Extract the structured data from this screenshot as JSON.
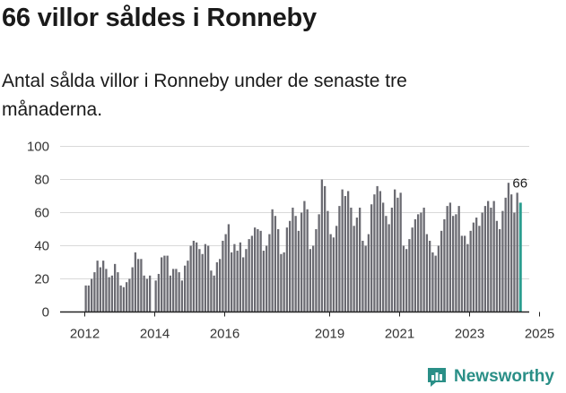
{
  "header": {
    "title": "66 villor såldes i Ronneby",
    "subtitle": "Antal sålda villor i Ronneby under de senaste tre månaderna."
  },
  "brand": {
    "name": "Newsworthy",
    "color": "#2a8f87",
    "icon": "newsworthy-logo-icon"
  },
  "colors": {
    "bar": "#6b6b72",
    "highlight": "#2a9d8f",
    "grid": "#d9d9d9",
    "axis": "#222222"
  },
  "chart_data": {
    "type": "bar",
    "title": "66 villor såldes i Ronneby",
    "ylim": [
      0,
      100
    ],
    "yticks": [
      "0",
      "20",
      "40",
      "60",
      "80",
      "100"
    ],
    "xticks": [
      "2012",
      "2014",
      "2016",
      "2019",
      "2021",
      "2023",
      "2025"
    ],
    "xtick_positions": [
      2012,
      2014,
      2016,
      2019,
      2021,
      2023,
      2025
    ],
    "grid": true,
    "start_year": 2012,
    "start_month": 1,
    "values": [
      16,
      16,
      20,
      24,
      31,
      27,
      31,
      26,
      21,
      22,
      29,
      24,
      16,
      15,
      18,
      20,
      27,
      36,
      32,
      32,
      22,
      20,
      22,
      null,
      19,
      23,
      33,
      34,
      34,
      22,
      26,
      26,
      24,
      19,
      28,
      31,
      40,
      43,
      42,
      38,
      35,
      41,
      40,
      25,
      22,
      30,
      32,
      43,
      47,
      53,
      36,
      41,
      37,
      42,
      33,
      38,
      44,
      46,
      51,
      50,
      49,
      37,
      40,
      47,
      62,
      58,
      50,
      35,
      36,
      51,
      55,
      63,
      58,
      49,
      60,
      67,
      62,
      38,
      40,
      50,
      59,
      80,
      76,
      61,
      47,
      45,
      52,
      64,
      74,
      70,
      73,
      63,
      52,
      57,
      63,
      43,
      40,
      47,
      65,
      71,
      76,
      73,
      66,
      58,
      53,
      63,
      74,
      69,
      72,
      40,
      38,
      44,
      51,
      56,
      59,
      60,
      63,
      47,
      43,
      36,
      34,
      40,
      49,
      56,
      64,
      66,
      58,
      59,
      64,
      46,
      46,
      41,
      49,
      54,
      57,
      52,
      60,
      64,
      67,
      63,
      67,
      55,
      50,
      61,
      69,
      78,
      71,
      60,
      72,
      66
    ],
    "highlight_last": true,
    "annotations": [
      {
        "label": "66"
      }
    ]
  }
}
